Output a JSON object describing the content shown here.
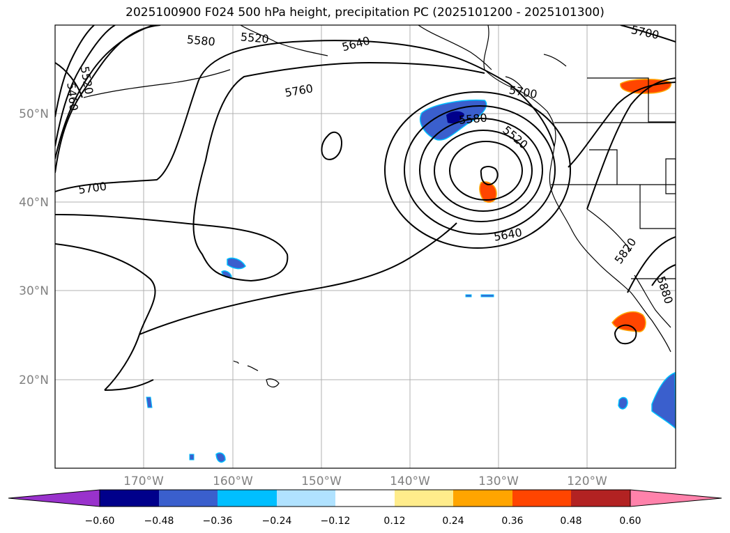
{
  "title": "2025100900 F024 500 hPa height, precipitation PC (2025101200 - 2025101300)",
  "map": {
    "lon_labels": [
      "170°W",
      "160°W",
      "150°W",
      "140°W",
      "130°W",
      "120°W"
    ],
    "lat_labels": [
      "50°N",
      "40°N",
      "30°N",
      "20°N"
    ],
    "contour_labels": [
      "5580",
      "5520",
      "5640",
      "5700",
      "5520",
      "5460",
      "5760",
      "5700",
      "5580",
      "5520",
      "5700",
      "5640",
      "5820",
      "5880"
    ]
  },
  "colorbar": {
    "ticks": [
      "−0.60",
      "−0.48",
      "−0.36",
      "−0.24",
      "−0.12",
      "0.12",
      "0.24",
      "0.36",
      "0.48",
      "0.60"
    ],
    "colors": [
      "#9932cc",
      "#00008b",
      "#3a5fcd",
      "#00bfff",
      "#b0e2ff",
      "#ffffff",
      "#ffec8b",
      "#ffa500",
      "#ff4500",
      "#b22222",
      "#ff82ab"
    ]
  }
}
